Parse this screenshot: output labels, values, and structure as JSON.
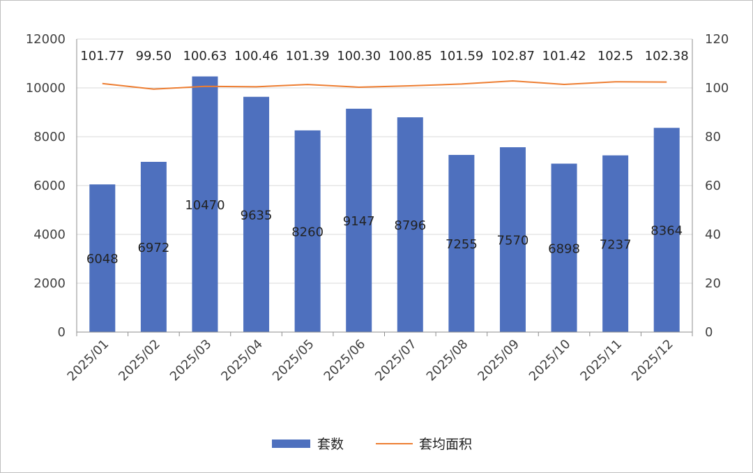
{
  "chart_data": {
    "type": "bar",
    "categories": [
      "2025/01",
      "2025/02",
      "2025/03",
      "2025/04",
      "2025/05",
      "2025/06",
      "2025/07",
      "2025/08",
      "2025/09",
      "2025/10",
      "2025/11",
      "2025/12"
    ],
    "series": [
      {
        "name": "套数",
        "type": "bar",
        "axis": "left",
        "color": "#4E70BE",
        "values": [
          6048,
          6972,
          10470,
          9635,
          8260,
          9147,
          8796,
          7255,
          7570,
          6898,
          7237,
          8364
        ],
        "labels": [
          "6048",
          "6972",
          "10470",
          "9635",
          "8260",
          "9147",
          "8796",
          "7255",
          "7570",
          "6898",
          "7237",
          "8364"
        ]
      },
      {
        "name": "套均面积",
        "type": "line",
        "axis": "right",
        "color": "#ED7D31",
        "values": [
          101.77,
          99.5,
          100.63,
          100.46,
          101.39,
          100.3,
          100.85,
          101.59,
          102.87,
          101.42,
          102.5,
          102.38
        ],
        "labels": [
          "101.77",
          "99.50",
          "100.63",
          "100.46",
          "101.39",
          "100.30",
          "100.85",
          "101.59",
          "102.87",
          "101.42",
          "102.5",
          "102.38"
        ]
      }
    ],
    "y_left": {
      "min": 0,
      "max": 12000,
      "step": 2000,
      "ticks": [
        "0",
        "2000",
        "4000",
        "6000",
        "8000",
        "10000",
        "12000"
      ]
    },
    "y_right": {
      "min": 0,
      "max": 120,
      "step": 20,
      "ticks": [
        "0",
        "20",
        "40",
        "60",
        "80",
        "100",
        "120"
      ]
    },
    "grid": true,
    "legend_position": "bottom",
    "title": "",
    "xlabel": "",
    "ylabel": ""
  }
}
